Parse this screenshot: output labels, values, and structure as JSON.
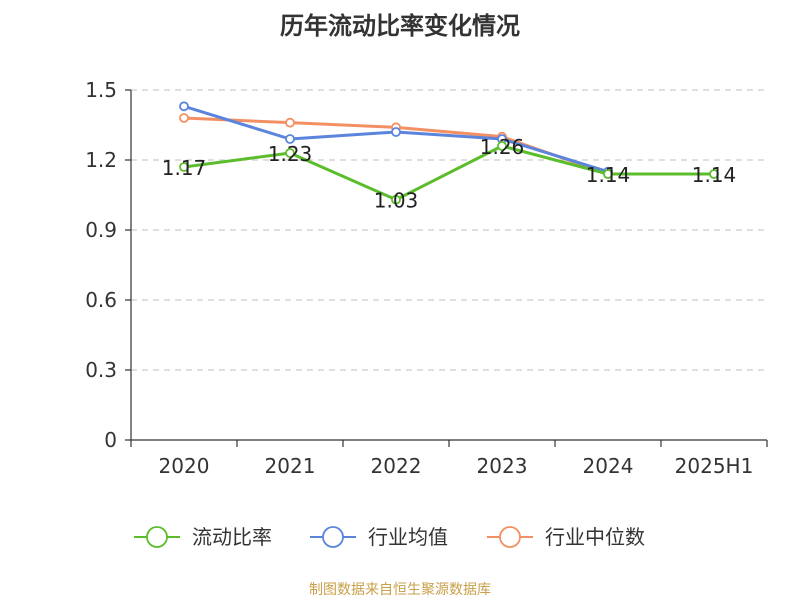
{
  "chart_data": {
    "type": "line",
    "title": "历年流动比率变化情况",
    "categories": [
      "2020",
      "2021",
      "2022",
      "2023",
      "2024",
      "2025H1"
    ],
    "ylim": [
      0,
      1.5
    ],
    "yticks": [
      "0",
      "0.3",
      "0.6",
      "0.9",
      "1.2",
      "1.5"
    ],
    "grid": true,
    "legend_position": "bottom",
    "series": [
      {
        "name": "流动比率",
        "color": "#5cbd2c",
        "values": [
          1.17,
          1.23,
          1.03,
          1.26,
          1.14,
          1.14
        ],
        "labels": [
          "1.17",
          "1.23",
          "1.03",
          "1.26",
          "1.14",
          "1.14"
        ]
      },
      {
        "name": "行业均值",
        "color": "#5b84dc",
        "values": [
          1.43,
          1.29,
          1.32,
          1.29,
          1.15,
          null
        ]
      },
      {
        "name": "行业中位数",
        "color": "#f39063",
        "values": [
          1.38,
          1.36,
          1.34,
          1.3,
          1.14,
          null
        ]
      }
    ]
  },
  "source": "制图数据来自恒生聚源数据库"
}
